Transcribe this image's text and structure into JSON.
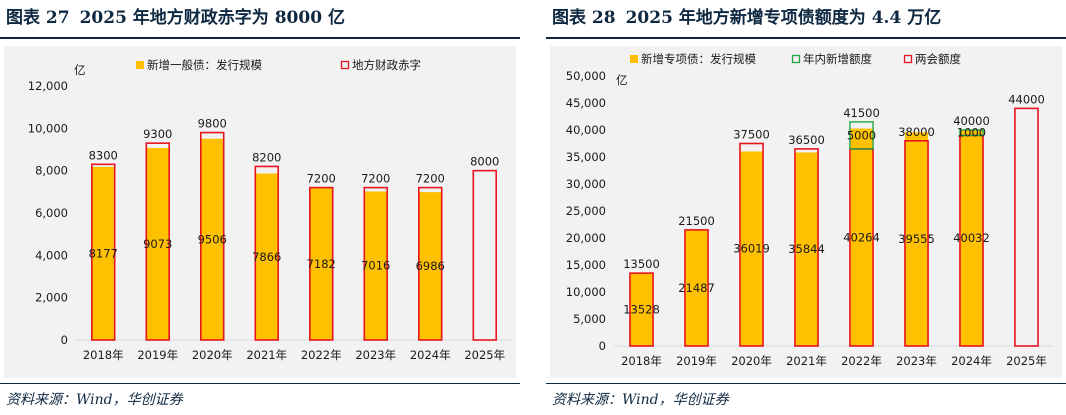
{
  "figures": [
    {
      "label": "图表 27",
      "title": "2025 年地方财政赤字为 8000 亿",
      "source": "资料来源：Wind，华创证券"
    },
    {
      "label": "图表 28",
      "title": "2025 年地方新增专项债额度为 4.4 万亿",
      "source": "资料来源：Wind，华创证券"
    }
  ],
  "colors": {
    "gold": "#ffc000",
    "red": "#e8141f",
    "green": "#22a645",
    "title": "#0e2841",
    "bg": "#f2f2f2"
  },
  "chart_data": [
    {
      "type": "bar",
      "unit_label": "亿",
      "categories": [
        "2018年",
        "2019年",
        "2020年",
        "2021年",
        "2022年",
        "2023年",
        "2024年",
        "2025年"
      ],
      "ylim": [
        0,
        12000
      ],
      "yticks": [
        "0",
        "2,000",
        "4,000",
        "6,000",
        "8,000",
        "10,000",
        "12,000"
      ],
      "grid": false,
      "legend_position": "top",
      "series": [
        {
          "name": "新增一般债：发行规模",
          "kind": "filled",
          "values": [
            8177,
            9073,
            9506,
            7866,
            7182,
            7016,
            6986,
            null
          ]
        },
        {
          "name": "地方财政赤字",
          "kind": "outline",
          "values": [
            8300,
            9300,
            9800,
            8200,
            7200,
            7200,
            7200,
            8000
          ]
        }
      ]
    },
    {
      "type": "bar",
      "unit_label": "亿",
      "categories": [
        "2018年",
        "2019年",
        "2020年",
        "2021年",
        "2022年",
        "2023年",
        "2024年",
        "2025年"
      ],
      "ylim": [
        0,
        50000
      ],
      "yticks": [
        "0",
        "5,000",
        "10,000",
        "15,000",
        "20,000",
        "25,000",
        "30,000",
        "35,000",
        "40,000",
        "45,000",
        "50,000"
      ],
      "grid": false,
      "legend_position": "top",
      "series": [
        {
          "name": "新增专项债：发行规模",
          "kind": "filled",
          "values": [
            13528,
            21487,
            36019,
            35844,
            40264,
            39555,
            40032,
            null
          ]
        },
        {
          "name": "年内新增额度",
          "kind": "outline",
          "values": [
            null,
            null,
            null,
            null,
            5000,
            null,
            1000,
            null
          ]
        },
        {
          "name": "两会额度",
          "kind": "outline",
          "values": [
            13500,
            21500,
            37500,
            36500,
            36500,
            38000,
            39000,
            44000
          ]
        }
      ],
      "top_labels": [
        "13500",
        "21500",
        "37500",
        "36500",
        "41500",
        "38000",
        "40000",
        "44000"
      ],
      "increment_labels": [
        null,
        null,
        null,
        null,
        "5000",
        null,
        "1000",
        null
      ]
    }
  ]
}
